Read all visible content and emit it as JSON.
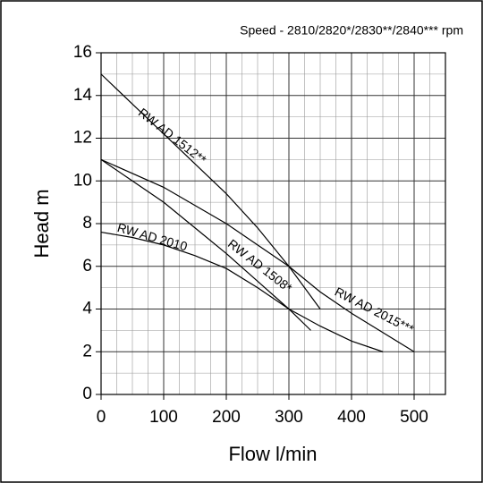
{
  "chart_data": {
    "type": "line",
    "subtitle": "Speed - 2810/2820*/2830**/2840*** rpm",
    "xlabel": "Flow l/min",
    "ylabel": "Head m",
    "xlim": [
      0,
      550
    ],
    "ylim": [
      0,
      16
    ],
    "xticks": [
      0,
      100,
      200,
      300,
      400,
      500
    ],
    "yticks": [
      0,
      2,
      4,
      6,
      8,
      10,
      12,
      14,
      16
    ],
    "grid": true,
    "series": [
      {
        "name": "RW AD 1512**",
        "color": "#000000",
        "x": [
          0,
          50,
          100,
          150,
          200,
          250,
          300,
          350
        ],
        "values": [
          15,
          13.6,
          12.2,
          10.8,
          9.4,
          7.8,
          6.0,
          4.0
        ]
      },
      {
        "name": "RW AD 2015***",
        "color": "#000000",
        "x": [
          0,
          100,
          200,
          300,
          350,
          400,
          450,
          500
        ],
        "values": [
          11,
          9.7,
          8.0,
          6.0,
          4.8,
          3.8,
          2.9,
          2.0
        ]
      },
      {
        "name": "RW AD 1508*",
        "color": "#000000",
        "x": [
          0,
          50,
          100,
          150,
          200,
          250,
          300,
          335
        ],
        "values": [
          11,
          10,
          9,
          7.8,
          6.6,
          5.3,
          4.0,
          3.0
        ]
      },
      {
        "name": "RW AD 2010",
        "color": "#000000",
        "x": [
          0,
          50,
          100,
          150,
          200,
          250,
          300,
          350,
          400,
          450
        ],
        "values": [
          7.6,
          7.35,
          7.0,
          6.5,
          5.9,
          5.0,
          4.0,
          3.2,
          2.5,
          2.0
        ]
      }
    ]
  }
}
